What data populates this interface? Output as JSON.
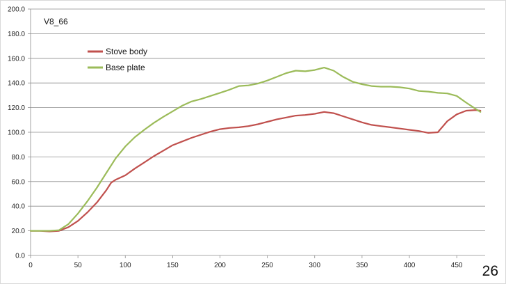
{
  "page_number": "26",
  "chart_data": {
    "type": "line",
    "title": "V8_66",
    "xlabel": "",
    "ylabel": "",
    "xlim": [
      0,
      480
    ],
    "ylim": [
      0,
      200
    ],
    "x_ticks": [
      0,
      50,
      100,
      150,
      200,
      250,
      300,
      350,
      400,
      450
    ],
    "y_ticks": [
      "0.0",
      "20.0",
      "40.0",
      "60.0",
      "80.0",
      "100.0",
      "120.0",
      "140.0",
      "160.0",
      "180.0",
      "200.0"
    ],
    "grid": "horizontal",
    "legend_position": "top-left",
    "series": [
      {
        "name": "Stove body",
        "color": "#c0504d",
        "points": [
          [
            0,
            20
          ],
          [
            10,
            20
          ],
          [
            20,
            19.5
          ],
          [
            30,
            20
          ],
          [
            40,
            23
          ],
          [
            50,
            28
          ],
          [
            60,
            35
          ],
          [
            70,
            43
          ],
          [
            80,
            53
          ],
          [
            85,
            59
          ],
          [
            90,
            61.5
          ],
          [
            100,
            65
          ],
          [
            110,
            70.5
          ],
          [
            120,
            75.5
          ],
          [
            130,
            80.5
          ],
          [
            140,
            85
          ],
          [
            150,
            89.5
          ],
          [
            160,
            92.5
          ],
          [
            170,
            95.5
          ],
          [
            180,
            98
          ],
          [
            190,
            100.5
          ],
          [
            200,
            102.5
          ],
          [
            210,
            103.5
          ],
          [
            220,
            104
          ],
          [
            230,
            105
          ],
          [
            240,
            106.5
          ],
          [
            250,
            108.5
          ],
          [
            260,
            110.5
          ],
          [
            270,
            112
          ],
          [
            280,
            113.5
          ],
          [
            290,
            114
          ],
          [
            300,
            115
          ],
          [
            310,
            116.5
          ],
          [
            320,
            115.5
          ],
          [
            330,
            113
          ],
          [
            340,
            110.5
          ],
          [
            350,
            108
          ],
          [
            360,
            106
          ],
          [
            370,
            105
          ],
          [
            380,
            104
          ],
          [
            390,
            103
          ],
          [
            400,
            102
          ],
          [
            410,
            101
          ],
          [
            420,
            99.5
          ],
          [
            430,
            100
          ],
          [
            440,
            109
          ],
          [
            450,
            114.5
          ],
          [
            460,
            117.5
          ],
          [
            470,
            118
          ],
          [
            475,
            117.5
          ]
        ]
      },
      {
        "name": "Base plate",
        "color": "#9bbb59",
        "points": [
          [
            0,
            20
          ],
          [
            10,
            20
          ],
          [
            20,
            20
          ],
          [
            30,
            20.5
          ],
          [
            40,
            25.5
          ],
          [
            50,
            34
          ],
          [
            60,
            44
          ],
          [
            70,
            55
          ],
          [
            80,
            67
          ],
          [
            90,
            79
          ],
          [
            100,
            88.5
          ],
          [
            110,
            96
          ],
          [
            120,
            102
          ],
          [
            130,
            107.5
          ],
          [
            140,
            112.5
          ],
          [
            150,
            117
          ],
          [
            160,
            121.5
          ],
          [
            170,
            125
          ],
          [
            180,
            127
          ],
          [
            190,
            129.5
          ],
          [
            200,
            132
          ],
          [
            210,
            134.5
          ],
          [
            220,
            137.5
          ],
          [
            230,
            138
          ],
          [
            240,
            139.5
          ],
          [
            250,
            142
          ],
          [
            260,
            145
          ],
          [
            270,
            148
          ],
          [
            280,
            150
          ],
          [
            290,
            149.5
          ],
          [
            300,
            150.5
          ],
          [
            310,
            152.5
          ],
          [
            320,
            150
          ],
          [
            330,
            145
          ],
          [
            340,
            141
          ],
          [
            350,
            139
          ],
          [
            360,
            137.5
          ],
          [
            370,
            137
          ],
          [
            380,
            137
          ],
          [
            390,
            136.5
          ],
          [
            400,
            135.5
          ],
          [
            410,
            133.5
          ],
          [
            420,
            133
          ],
          [
            430,
            132
          ],
          [
            440,
            131.5
          ],
          [
            450,
            129.5
          ],
          [
            460,
            124
          ],
          [
            470,
            119
          ],
          [
            475,
            116.5
          ]
        ]
      }
    ]
  }
}
